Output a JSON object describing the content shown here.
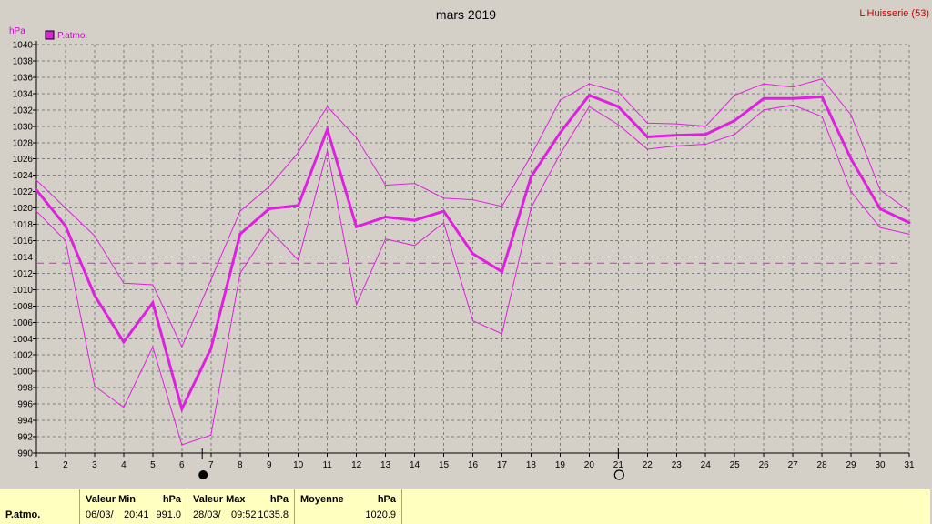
{
  "station": "L'Huisserie (53)",
  "colors": {
    "series": "#e020e0",
    "text": "#000000",
    "station": "#cc0000"
  },
  "chart_data": {
    "type": "line",
    "title": "mars 2019",
    "ylabel": "hPa",
    "legend": "P.atmo.",
    "legend_position": "top-left",
    "grid": true,
    "ylim": [
      990,
      1040
    ],
    "ytick_step": 2,
    "x": [
      1,
      2,
      3,
      4,
      5,
      6,
      7,
      8,
      9,
      10,
      11,
      12,
      13,
      14,
      15,
      16,
      17,
      18,
      19,
      20,
      21,
      22,
      23,
      24,
      25,
      26,
      27,
      28,
      29,
      30,
      31
    ],
    "series": [
      {
        "name": "moyenne",
        "style": "thick",
        "values": [
          1022.2,
          1017.8,
          1009.3,
          1003.6,
          1008.4,
          995.4,
          1002.8,
          1016.8,
          1019.9,
          1020.3,
          1029.6,
          1017.7,
          1018.9,
          1018.5,
          1019.6,
          1014.4,
          1012.2,
          1023.8,
          1029.2,
          1033.8,
          1032.4,
          1028.7,
          1028.9,
          1029.0,
          1030.7,
          1033.4,
          1033.4,
          1033.6,
          1026.0,
          1019.9,
          1018.2
        ]
      },
      {
        "name": "max",
        "style": "thin",
        "values": [
          1023.4,
          1020.0,
          1016.6,
          1010.8,
          1010.6,
          1003.0,
          1011.2,
          1019.6,
          1022.6,
          1026.8,
          1032.4,
          1028.6,
          1022.8,
          1023.0,
          1021.2,
          1021.0,
          1020.2,
          1026.4,
          1033.2,
          1035.2,
          1034.2,
          1030.4,
          1030.3,
          1030.0,
          1033.8,
          1035.2,
          1034.8,
          1035.8,
          1031.4,
          1022.2,
          1019.6
        ]
      },
      {
        "name": "min",
        "style": "thin",
        "values": [
          1019.6,
          1016.0,
          998.2,
          995.6,
          1003.0,
          991.0,
          992.2,
          1012.0,
          1017.4,
          1013.6,
          1027.0,
          1008.2,
          1016.2,
          1015.4,
          1018.2,
          1006.2,
          1004.6,
          1020.0,
          1026.6,
          1032.4,
          1030.2,
          1027.2,
          1027.6,
          1027.8,
          1029.0,
          1032.0,
          1032.6,
          1031.2,
          1022.0,
          1017.6,
          1016.8
        ]
      }
    ],
    "average_line": 1013.25,
    "moon_phases": [
      {
        "x": 6.7,
        "phase": "new-moon"
      },
      {
        "x": 21,
        "phase": "full-moon"
      }
    ]
  },
  "stats": {
    "row_label": "P.atmo.",
    "min": {
      "header": "Valeur Min",
      "unit": "hPa",
      "date": "06/03/",
      "time": "20:41",
      "value": "991.0"
    },
    "max": {
      "header": "Valeur Max",
      "unit": "hPa",
      "date": "28/03/",
      "time": "09:52",
      "value": "1035.8"
    },
    "avg": {
      "header": "Moyenne",
      "unit": "hPa",
      "value": "1020.9"
    }
  }
}
